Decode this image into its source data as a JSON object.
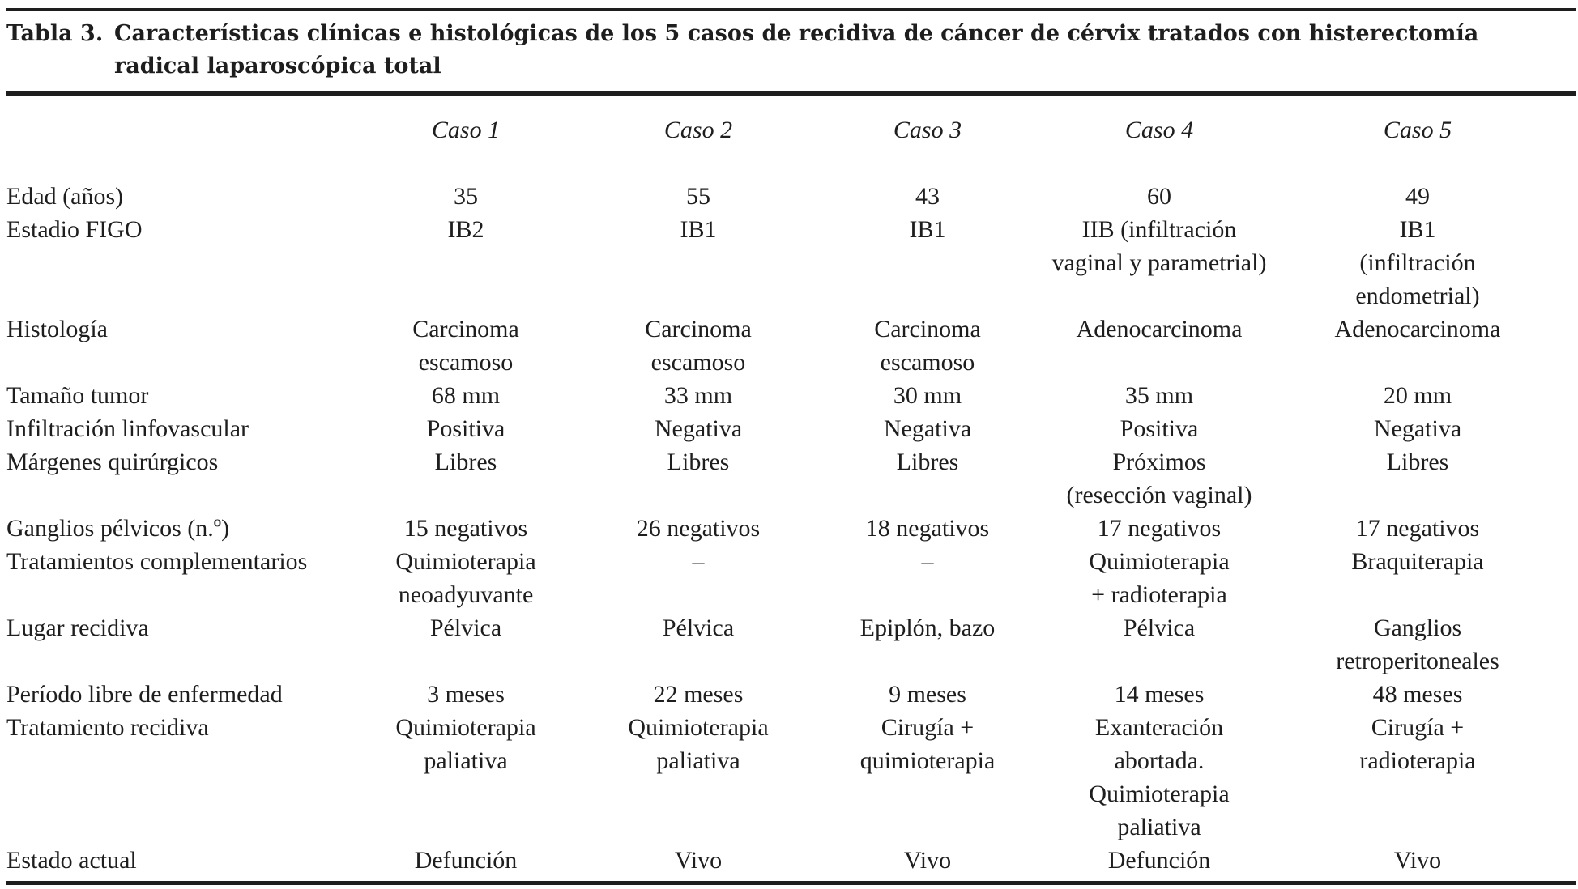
{
  "caption": {
    "label": "Tabla 3.",
    "line1": "Características clínicas e histológicas de los 5 casos de recidiva de cáncer de cérvix tratados con histerectomía",
    "line2": "radical laparoscópica total"
  },
  "columns": [
    "Caso 1",
    "Caso 2",
    "Caso 3",
    "Caso 4",
    "Caso 5"
  ],
  "rows": [
    {
      "label": "Edad (años)",
      "cells": [
        [
          "35"
        ],
        [
          "55"
        ],
        [
          "43"
        ],
        [
          "60"
        ],
        [
          "49"
        ]
      ]
    },
    {
      "label": "Estadio FIGO",
      "cells": [
        [
          "IB2"
        ],
        [
          "IB1"
        ],
        [
          "IB1"
        ],
        [
          "IIB (infiltración",
          "vaginal y parametrial)"
        ],
        [
          "IB1",
          "(infiltración",
          "endometrial)"
        ]
      ]
    },
    {
      "label": "Histología",
      "cells": [
        [
          "Carcinoma",
          "escamoso"
        ],
        [
          "Carcinoma",
          "escamoso"
        ],
        [
          "Carcinoma",
          "escamoso"
        ],
        [
          "Adenocarcinoma"
        ],
        [
          "Adenocarcinoma"
        ]
      ]
    },
    {
      "label": "Tamaño tumor",
      "cells": [
        [
          "68 mm"
        ],
        [
          "33 mm"
        ],
        [
          "30 mm"
        ],
        [
          "35 mm"
        ],
        [
          "20 mm"
        ]
      ]
    },
    {
      "label": "Infiltración linfovascular",
      "cells": [
        [
          "Positiva"
        ],
        [
          "Negativa"
        ],
        [
          "Negativa"
        ],
        [
          "Positiva"
        ],
        [
          "Negativa"
        ]
      ]
    },
    {
      "label": "Márgenes quirúrgicos",
      "cells": [
        [
          "Libres"
        ],
        [
          "Libres"
        ],
        [
          "Libres"
        ],
        [
          "Próximos",
          "(resección vaginal)"
        ],
        [
          "Libres"
        ]
      ]
    },
    {
      "label": "Ganglios pélvicos (n.º)",
      "cells": [
        [
          "15 negativos"
        ],
        [
          "26 negativos"
        ],
        [
          "18 negativos"
        ],
        [
          "17 negativos"
        ],
        [
          "17 negativos"
        ]
      ]
    },
    {
      "label": "Tratamientos complementarios",
      "cells": [
        [
          "Quimioterapia",
          "neoadyuvante"
        ],
        [
          "–"
        ],
        [
          "–"
        ],
        [
          "Quimioterapia",
          "+ radioterapia"
        ],
        [
          "Braquiterapia"
        ]
      ]
    },
    {
      "label": "Lugar recidiva",
      "cells": [
        [
          "Pélvica"
        ],
        [
          "Pélvica"
        ],
        [
          "Epiplón, bazo"
        ],
        [
          "Pélvica"
        ],
        [
          "Ganglios",
          "retroperitoneales"
        ]
      ]
    },
    {
      "label": "Período libre de enfermedad",
      "cells": [
        [
          "3 meses"
        ],
        [
          "22 meses"
        ],
        [
          "9 meses"
        ],
        [
          "14 meses"
        ],
        [
          "48 meses"
        ]
      ]
    },
    {
      "label": "Tratamiento recidiva",
      "cells": [
        [
          "Quimioterapia",
          "paliativa"
        ],
        [
          "Quimioterapia",
          "paliativa"
        ],
        [
          "Cirugía +",
          "quimioterapia"
        ],
        [
          "Exanteración",
          "abortada.",
          "Quimioterapia",
          "paliativa"
        ],
        [
          "Cirugía +",
          "radioterapia"
        ]
      ]
    },
    {
      "label": "Estado actual",
      "cells": [
        [
          "Defunción"
        ],
        [
          "Vivo"
        ],
        [
          "Vivo"
        ],
        [
          "Defunción"
        ],
        [
          "Vivo"
        ]
      ]
    }
  ]
}
